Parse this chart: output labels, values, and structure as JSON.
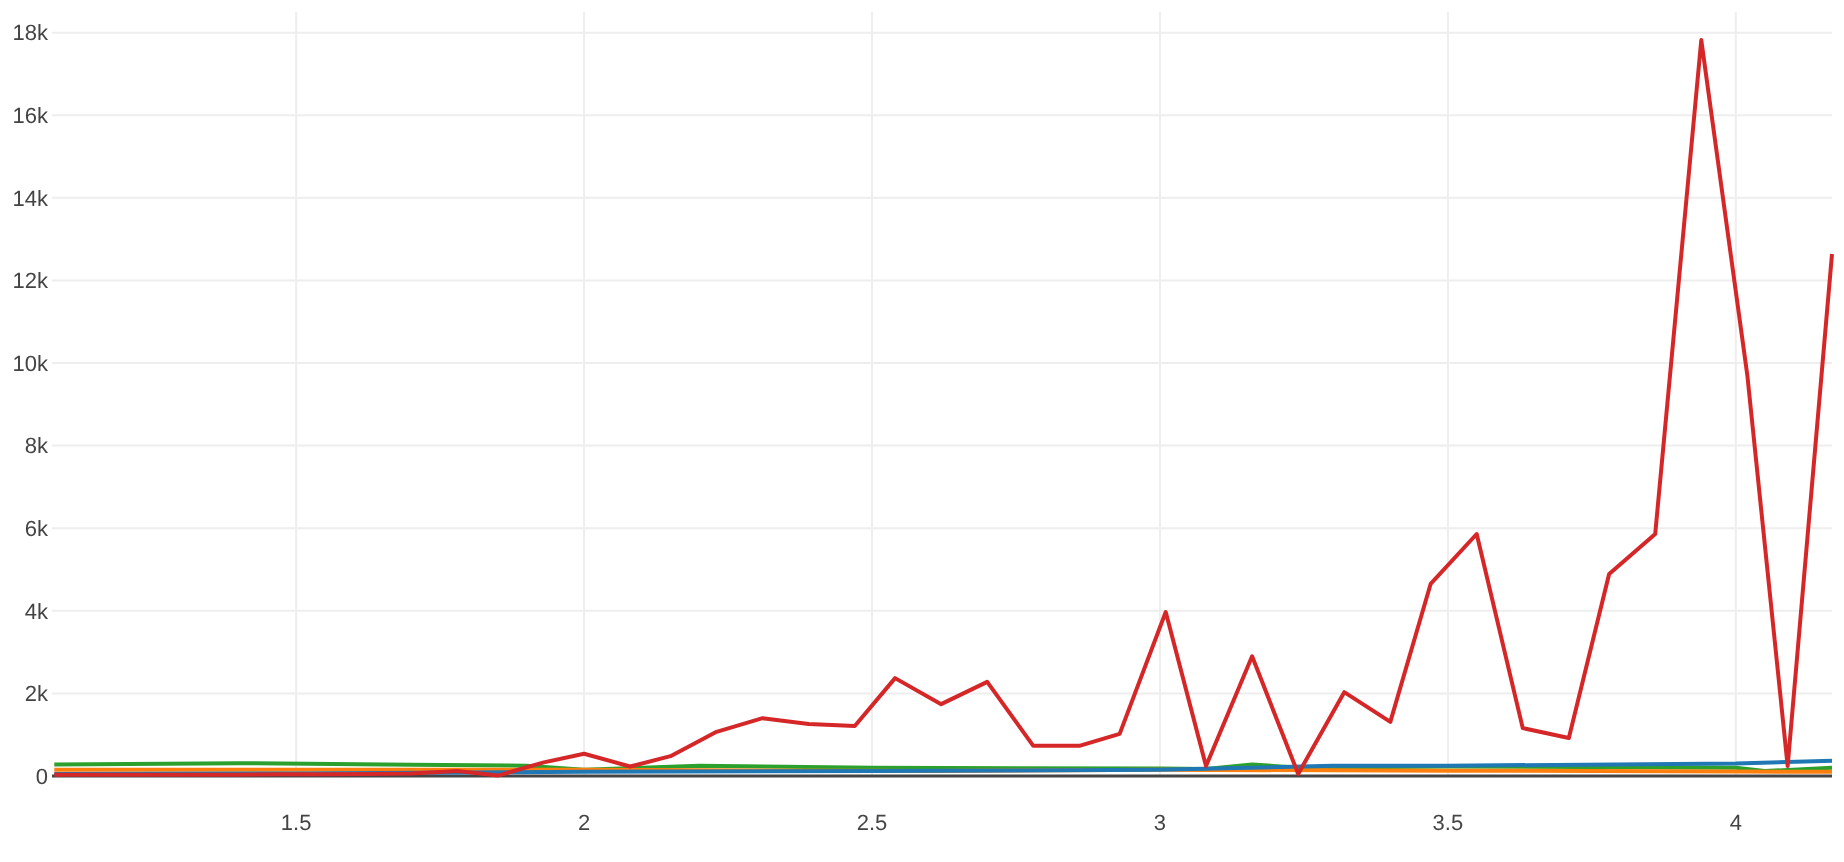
{
  "chart_data": {
    "type": "line",
    "xlim": [
      1.076,
      4.167
    ],
    "ylim": [
      0,
      18500
    ],
    "xticks": [
      1.5,
      2,
      2.5,
      3,
      3.5,
      4
    ],
    "yticks": [
      0,
      {
        "value": 2000,
        "label": "2k"
      },
      {
        "value": 4000,
        "label": "4k"
      },
      {
        "value": 6000,
        "label": "6k"
      },
      {
        "value": 8000,
        "label": "8k"
      },
      {
        "value": 10000,
        "label": "10k"
      },
      {
        "value": 12000,
        "label": "12k"
      },
      {
        "value": 14000,
        "label": "14k"
      },
      {
        "value": 16000,
        "label": "16k"
      },
      {
        "value": 18000,
        "label": "18k"
      }
    ],
    "grid": true,
    "marker": "none",
    "line_style": "solid",
    "series": [
      {
        "color": "#2ca02c",
        "x": [
          1.08,
          1.4,
          1.7,
          1.9,
          2.0,
          2.2,
          2.5,
          3.0,
          3.08,
          3.16,
          3.24,
          3.5,
          4.0,
          4.05,
          4.167
        ],
        "values": [
          280,
          310,
          270,
          250,
          150,
          250,
          200,
          180,
          170,
          280,
          200,
          230,
          200,
          120,
          200
        ]
      },
      {
        "color": "#ff7f0e",
        "x": [
          1.08,
          1.5,
          2.0,
          2.6,
          3.0,
          3.5,
          4.0,
          4.167
        ],
        "values": [
          150,
          150,
          150,
          120,
          150,
          130,
          110,
          100
        ]
      },
      {
        "color": "#1f77b4",
        "x": [
          1.08,
          1.5,
          2.0,
          2.5,
          3.0,
          3.3,
          3.5,
          4.0,
          4.167
        ],
        "values": [
          50,
          60,
          100,
          120,
          150,
          250,
          250,
          300,
          370
        ]
      },
      {
        "color": "#d62728",
        "x": [
          1.08,
          1.16,
          1.23,
          1.31,
          1.39,
          1.47,
          1.55,
          1.62,
          1.7,
          1.78,
          1.85,
          1.93,
          2.0,
          2.08,
          2.15,
          2.23,
          2.31,
          2.39,
          2.47,
          2.54,
          2.62,
          2.7,
          2.78,
          2.86,
          2.93,
          3.01,
          3.08,
          3.16,
          3.24,
          3.32,
          3.4,
          3.47,
          3.55,
          3.63,
          3.71,
          3.78,
          3.86,
          3.94,
          4.02,
          4.09,
          4.167
        ],
        "values": [
          30,
          30,
          30,
          30,
          30,
          40,
          40,
          50,
          60,
          120,
          10,
          330,
          540,
          230,
          480,
          1070,
          1400,
          1260,
          1210,
          2370,
          1740,
          2280,
          730,
          730,
          1020,
          3970,
          240,
          2900,
          50,
          2030,
          1310,
          4650,
          5860,
          1160,
          920,
          4890,
          5860,
          17820,
          9700,
          240,
          12640
        ]
      }
    ]
  }
}
